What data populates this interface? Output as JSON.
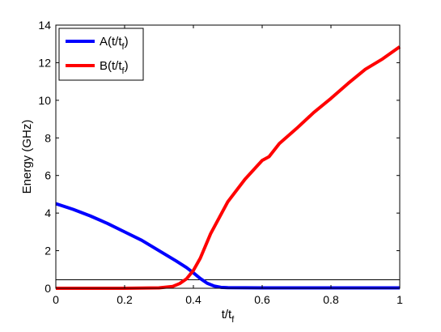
{
  "chart_data": {
    "type": "line",
    "title": "",
    "xlabel": "t/t",
    "xlabel_sub": "f",
    "ylabel": "Energy (GHz)",
    "xlim": [
      0,
      1
    ],
    "ylim": [
      0,
      14
    ],
    "x_ticks": [
      0,
      0.2,
      0.4,
      0.6,
      0.8,
      1
    ],
    "x_tick_labels": [
      "0",
      "0.2",
      "0.4",
      "0.6",
      "0.8",
      "1"
    ],
    "y_ticks": [
      0,
      2,
      4,
      6,
      8,
      10,
      12,
      14
    ],
    "y_tick_labels": [
      "0",
      "2",
      "4",
      "6",
      "8",
      "10",
      "12",
      "14"
    ],
    "grid": false,
    "legend_position": "top-left",
    "reference_line": {
      "y": 0.45,
      "color": "#000000"
    },
    "series": [
      {
        "name": "A(t/t",
        "name_sub": "f",
        "name_suffix": ")",
        "color": "#0000ff",
        "x": [
          0,
          0.05,
          0.1,
          0.15,
          0.2,
          0.25,
          0.3,
          0.35,
          0.38,
          0.4,
          0.42,
          0.44,
          0.46,
          0.48,
          0.5,
          0.6,
          0.7,
          0.8,
          0.9,
          1.0
        ],
        "y": [
          4.5,
          4.2,
          3.85,
          3.45,
          3.0,
          2.55,
          2.0,
          1.45,
          1.1,
          0.82,
          0.52,
          0.27,
          0.12,
          0.05,
          0.03,
          0.02,
          0.02,
          0.02,
          0.02,
          0.02
        ]
      },
      {
        "name": "B(t/t",
        "name_sub": "f",
        "name_suffix": ")",
        "color": "#ff0000",
        "x": [
          0,
          0.1,
          0.2,
          0.3,
          0.34,
          0.36,
          0.38,
          0.4,
          0.42,
          0.45,
          0.5,
          0.55,
          0.6,
          0.62,
          0.65,
          0.7,
          0.75,
          0.8,
          0.85,
          0.9,
          0.95,
          1.0
        ],
        "y": [
          0.0,
          0.0,
          0.0,
          0.02,
          0.1,
          0.25,
          0.5,
          0.95,
          1.6,
          2.9,
          4.6,
          5.8,
          6.8,
          7.0,
          7.7,
          8.5,
          9.35,
          10.1,
          10.9,
          11.65,
          12.2,
          12.85
        ]
      }
    ]
  }
}
